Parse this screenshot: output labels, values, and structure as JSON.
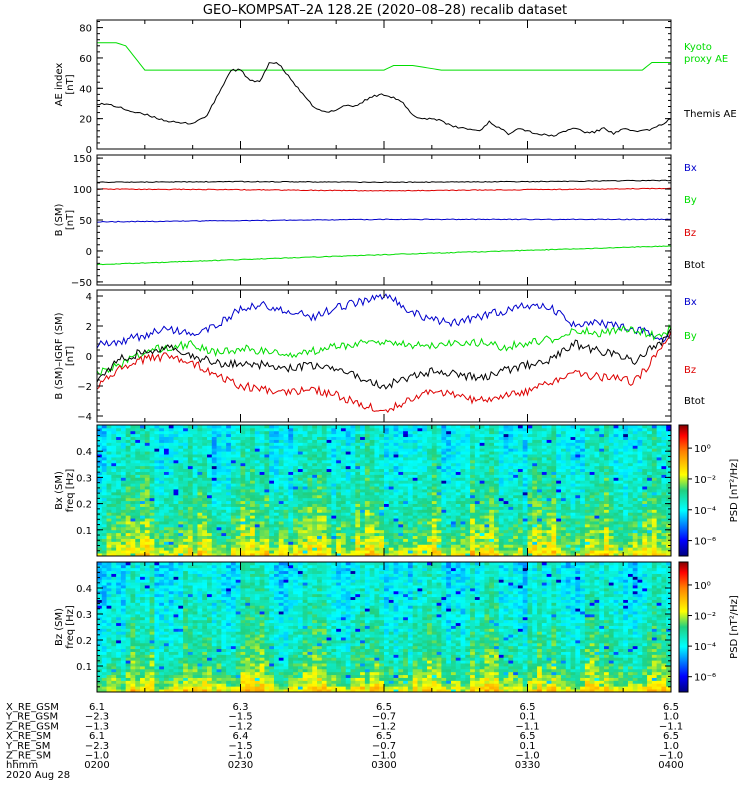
{
  "title": "GEO–KOMPSAT–2A 128.2E (2020–08–28) recalib dataset",
  "chart_data": [
    {
      "panel": "ae-index",
      "type": "line",
      "ylabel": [
        "AE index",
        "[nT]"
      ],
      "ylim": [
        0,
        85
      ],
      "yticks": [
        "0",
        "20",
        "40",
        "60",
        "80"
      ],
      "ytick_values": [
        0,
        20,
        40,
        60,
        80
      ],
      "xlim": [
        0,
        120
      ],
      "series": [
        {
          "name": "Kyoto proxy AE",
          "legend": [
            "Kyoto",
            "proxy AE"
          ],
          "color": "#00dd00",
          "x": [
            0,
            4,
            6,
            8,
            10,
            14,
            60,
            62,
            66,
            72,
            74,
            114,
            116,
            120
          ],
          "y": [
            70,
            70,
            68,
            60,
            52,
            52,
            52,
            55,
            55,
            52,
            52,
            52,
            57,
            57
          ]
        },
        {
          "name": "Themis AE",
          "legend": [
            "Themis AE"
          ],
          "color": "#000000",
          "x": [
            0,
            3,
            5,
            8,
            11,
            14,
            17,
            20,
            23,
            26,
            28,
            30,
            32,
            34,
            36,
            38,
            40,
            42,
            44,
            46,
            48,
            50,
            52,
            54,
            56,
            58,
            60,
            62,
            64,
            66,
            68,
            70,
            72,
            74,
            76,
            78,
            80,
            82,
            84,
            86,
            88,
            90,
            92,
            94,
            96,
            98,
            100,
            102,
            104,
            106,
            108,
            110,
            112,
            114,
            116,
            118,
            120
          ],
          "y": [
            30,
            29,
            27,
            24,
            22,
            19,
            17,
            17,
            22,
            40,
            52,
            52,
            45,
            44,
            57,
            56,
            48,
            40,
            32,
            26,
            24,
            26,
            29,
            28,
            32,
            35,
            36,
            34,
            30,
            22,
            20,
            20,
            19,
            15,
            14,
            13,
            12,
            18,
            14,
            10,
            14,
            12,
            10,
            9,
            9,
            12,
            14,
            11,
            11,
            14,
            10,
            13,
            12,
            12,
            13,
            16,
            20
          ]
        }
      ]
    },
    {
      "panel": "b-sm",
      "type": "line",
      "ylabel": [
        "B (SM)",
        "[nT]"
      ],
      "ylim": [
        -55,
        155
      ],
      "yticks": [
        "−50",
        "0",
        "50",
        "100",
        "150"
      ],
      "ytick_values": [
        -50,
        0,
        50,
        100,
        150
      ],
      "xlim": [
        0,
        120
      ],
      "series": [
        {
          "name": "Bx",
          "color": "#0000cc",
          "x": [
            0,
            30,
            60,
            90,
            120
          ],
          "y": [
            47,
            49,
            51,
            51,
            51
          ]
        },
        {
          "name": "By",
          "color": "#00dd00",
          "x": [
            0,
            30,
            60,
            90,
            120
          ],
          "y": [
            -22,
            -14,
            -6,
            1,
            8
          ]
        },
        {
          "name": "Bz",
          "color": "#dd0000",
          "x": [
            0,
            30,
            60,
            90,
            120
          ],
          "y": [
            100,
            99,
            97,
            99,
            101
          ]
        },
        {
          "name": "Btot",
          "color": "#000000",
          "x": [
            0,
            30,
            60,
            90,
            120
          ],
          "y": [
            111,
            112,
            111,
            112,
            114
          ]
        }
      ]
    },
    {
      "panel": "b-minus-igrf",
      "type": "line",
      "ylabel": [
        "B (SM)–IGRF (SM)",
        "[nT]"
      ],
      "ylim": [
        -4.4,
        4.4
      ],
      "yticks": [
        "−4",
        "−2",
        "0",
        "2",
        "4"
      ],
      "ytick_values": [
        -4,
        -2,
        0,
        2,
        4
      ],
      "xlim": [
        0,
        120
      ],
      "series": [
        {
          "name": "Bx",
          "color": "#0000cc",
          "x": [
            0,
            5,
            10,
            15,
            20,
            25,
            30,
            35,
            40,
            45,
            50,
            55,
            60,
            62,
            65,
            70,
            75,
            80,
            85,
            90,
            95,
            100,
            105,
            110,
            115,
            118,
            120
          ],
          "y": [
            0.8,
            1.0,
            1.4,
            1.8,
            1.4,
            2.0,
            3.2,
            3.4,
            3.0,
            2.6,
            3.2,
            3.6,
            4.0,
            3.8,
            3.0,
            2.4,
            2.2,
            2.6,
            3.0,
            3.4,
            3.2,
            2.0,
            2.2,
            1.9,
            1.6,
            1.1,
            1.5
          ]
        },
        {
          "name": "By",
          "color": "#00dd00",
          "x": [
            0,
            5,
            10,
            15,
            20,
            25,
            30,
            35,
            40,
            45,
            50,
            55,
            60,
            65,
            70,
            75,
            80,
            85,
            90,
            95,
            100,
            105,
            110,
            115,
            118,
            120
          ],
          "y": [
            -1.2,
            -0.5,
            0.3,
            0.6,
            0.8,
            0.2,
            0.5,
            0.3,
            0.0,
            0.3,
            0.6,
            0.8,
            0.9,
            0.7,
            0.7,
            0.9,
            0.9,
            0.6,
            0.9,
            1.1,
            1.8,
            1.5,
            1.8,
            1.5,
            1.2,
            2.0
          ]
        },
        {
          "name": "Bz",
          "color": "#dd0000",
          "x": [
            0,
            5,
            10,
            15,
            20,
            25,
            30,
            35,
            40,
            45,
            50,
            55,
            60,
            65,
            70,
            75,
            80,
            85,
            90,
            95,
            100,
            105,
            110,
            112,
            115,
            118,
            120
          ],
          "y": [
            -2.0,
            -0.8,
            -0.2,
            0.0,
            -0.5,
            -1.2,
            -2.0,
            -2.2,
            -2.5,
            -2.2,
            -2.6,
            -3.2,
            -3.7,
            -3.0,
            -2.4,
            -2.6,
            -3.0,
            -2.6,
            -2.4,
            -1.8,
            -1.2,
            -1.4,
            -1.5,
            -1.8,
            -0.8,
            0.6,
            1.5
          ]
        },
        {
          "name": "Btot",
          "color": "#000000",
          "x": [
            0,
            5,
            10,
            15,
            20,
            25,
            30,
            35,
            40,
            45,
            50,
            55,
            60,
            65,
            70,
            75,
            80,
            85,
            90,
            95,
            100,
            105,
            110,
            112,
            115,
            118,
            120
          ],
          "y": [
            -1.5,
            -0.2,
            0.3,
            0.6,
            0.0,
            -0.5,
            -0.5,
            -0.6,
            -0.8,
            -0.6,
            -1.0,
            -1.4,
            -2.0,
            -1.5,
            -1.0,
            -1.2,
            -1.5,
            -1.0,
            -0.6,
            -0.2,
            0.8,
            0.3,
            0.0,
            -0.4,
            0.3,
            1.0,
            1.6
          ]
        }
      ]
    },
    {
      "panel": "bx-spectrogram",
      "type": "heatmap",
      "ylabel": [
        "Bx (SM)",
        "freq [Hz]"
      ],
      "ylim": [
        0,
        0.5
      ],
      "yticks": [
        "0.1",
        "0.2",
        "0.3",
        "0.4"
      ],
      "ytick_values": [
        0.1,
        0.2,
        0.3,
        0.4
      ],
      "xlim": [
        0,
        120
      ],
      "colorbar": {
        "label": "PSD [nT²/Hz]",
        "ticks": [
          "10⁰",
          "10⁻²",
          "10⁻⁴",
          "10⁻⁶"
        ],
        "tick_values": [
          0,
          -2,
          -4,
          -6
        ],
        "range": [
          -7,
          1.5
        ]
      },
      "z_profile_log10": {
        "freq": [
          0.0,
          0.03,
          0.08,
          0.15,
          0.25,
          0.35,
          0.5
        ],
        "psd": [
          -1.5,
          -2.2,
          -2.6,
          -3.0,
          -3.4,
          -3.7,
          -3.9
        ]
      }
    },
    {
      "panel": "bz-spectrogram",
      "type": "heatmap",
      "ylabel": [
        "Bz (SM)",
        "freq [Hz]"
      ],
      "ylim": [
        0,
        0.5
      ],
      "yticks": [
        "0.1",
        "0.2",
        "0.3",
        "0.4"
      ],
      "ytick_values": [
        0.1,
        0.2,
        0.3,
        0.4
      ],
      "xlim": [
        0,
        120
      ],
      "colorbar": {
        "label": "PSD [nT²/Hz]",
        "ticks": [
          "10⁰",
          "10⁻²",
          "10⁻⁴",
          "10⁻⁶"
        ],
        "tick_values": [
          0,
          -2,
          -4,
          -6
        ],
        "range": [
          -7,
          1.5
        ]
      },
      "z_profile_log10": {
        "freq": [
          0.0,
          0.03,
          0.08,
          0.15,
          0.25,
          0.35,
          0.5
        ],
        "psd": [
          -1.3,
          -2.2,
          -2.8,
          -3.2,
          -3.5,
          -3.8,
          -4.0
        ]
      }
    }
  ],
  "ephemeris": {
    "labels": [
      "X_RE_GSM",
      "Y_RE_GSM",
      "Z_RE_GSM",
      "X_RE_SM",
      "Y_RE_SM",
      "Z_RE_SM",
      "hhmm"
    ],
    "date": "2020 Aug 28",
    "columns": [
      [
        "6.1",
        "−2.3",
        "−1.3",
        "6.1",
        "−2.3",
        "−1.0",
        "0200"
      ],
      [
        "6.3",
        "−1.5",
        "−1.2",
        "6.4",
        "−1.5",
        "−1.0",
        "0230"
      ],
      [
        "6.5",
        "−0.7",
        "−1.2",
        "6.5",
        "−0.7",
        "−1.0",
        "0300"
      ],
      [
        "6.5",
        "0.1",
        "−1.1",
        "6.5",
        "0.1",
        "−1.0",
        "0330"
      ],
      [
        "6.5",
        "1.0",
        "−1.1",
        "6.5",
        "1.0",
        "−1.0",
        "0400"
      ]
    ]
  }
}
